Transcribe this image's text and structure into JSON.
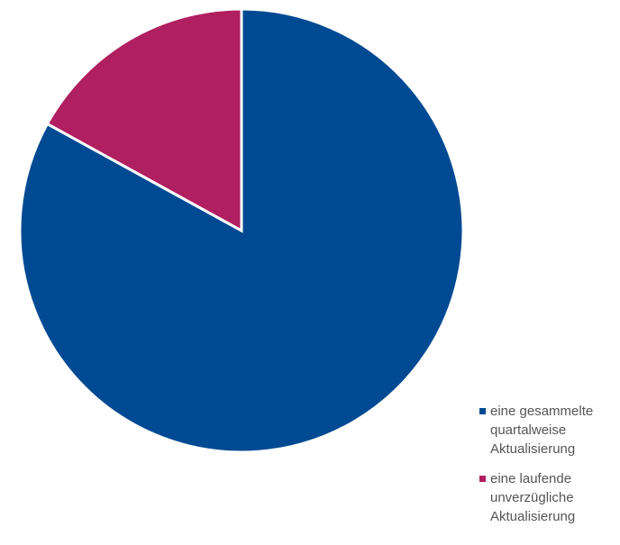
{
  "chart_data": {
    "type": "pie",
    "title": "",
    "series": [
      {
        "values": [
          83,
          17
        ]
      }
    ],
    "categories": [
      "eine gesammelte quartalweise Aktualisierung",
      "eine laufende unverzügliche Aktualisierung"
    ],
    "colors": [
      "#004a93",
      "#b01f5f"
    ],
    "legend_position": "bottom-right",
    "start_angle": "12 o'clock",
    "direction": "clockwise"
  },
  "legend": {
    "items": [
      {
        "label": "eine gesammelte quartalweise Aktualisierung",
        "color": "#004a93"
      },
      {
        "label": "eine laufende unverzügliche Aktualisierung",
        "color": "#b01f5f"
      }
    ]
  }
}
